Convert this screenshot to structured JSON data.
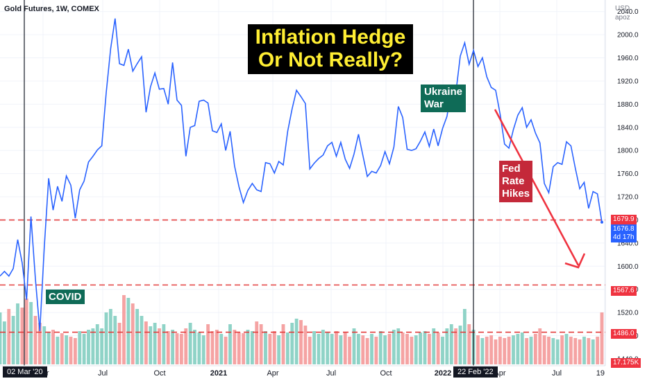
{
  "header": {
    "instrument": "Gold Futures, 1W, COMEX"
  },
  "axis_currency": {
    "currency": "USD",
    "unit": "apoz"
  },
  "title": {
    "line1": "Inflation Hedge",
    "line2": "Or Not Really?"
  },
  "annotations": {
    "covid": "COVID",
    "ukraine_line1": "Ukraine",
    "ukraine_line2": "War",
    "fed_line1": "Fed",
    "fed_line2": "Rate",
    "fed_line3": "Hikes"
  },
  "price_tags": {
    "level_1": "1679.9",
    "current": "1676.8",
    "countdown": "4d 17h",
    "level_2": "1567.6",
    "level_3": "1486.0",
    "volume": "17.175K"
  },
  "date_markers": {
    "covid": "02 Mar '20",
    "ukraine": "22 Feb '22"
  },
  "colors": {
    "line": "#2962ff",
    "volume_up": "#8fd3c7",
    "volume_down": "#f5a3a3",
    "dashed_level": "#e33c3c",
    "arrow": "#ef3340",
    "current_tag": "#2962ff",
    "level_tag": "#ef3340",
    "title_bg": "#000000",
    "title_text": "#ffee33",
    "green_box": "#0f6b57",
    "red_box": "#c4293a"
  },
  "chart_data": {
    "type": "line",
    "title": "Inflation Hedge Or Not Really?",
    "xlabel": "",
    "ylabel": "",
    "x_ticks": [
      "Apr",
      "Jul",
      "Oct",
      "2021",
      "Apr",
      "Jul",
      "Oct",
      "2022",
      "Apr",
      "Jul",
      "19"
    ],
    "y_ticks": [
      1440,
      1480,
      1520,
      1560,
      1600,
      1640,
      1680,
      1720,
      1760,
      1800,
      1840,
      1880,
      1920,
      1960,
      2000,
      2040
    ],
    "ylim": [
      1428,
      2060
    ],
    "grid": true,
    "series": [
      {
        "name": "Gold Futures",
        "values": [
          1583,
          1591,
          1583,
          1596,
          1646,
          1606,
          1542,
          1686,
          1578,
          1488,
          1633,
          1752,
          1697,
          1738,
          1712,
          1756,
          1740,
          1683,
          1732,
          1747,
          1780,
          1790,
          1801,
          1808,
          1900,
          1976,
          2028,
          1950,
          1947,
          1975,
          1937,
          1950,
          1962,
          1866,
          1910,
          1934,
          1906,
          1907,
          1880,
          1952,
          1887,
          1878,
          1790,
          1840,
          1843,
          1885,
          1887,
          1882,
          1834,
          1831,
          1846,
          1800,
          1833,
          1773,
          1737,
          1710,
          1731,
          1743,
          1732,
          1729,
          1779,
          1777,
          1761,
          1781,
          1775,
          1833,
          1872,
          1904,
          1893,
          1881,
          1768,
          1778,
          1786,
          1792,
          1808,
          1814,
          1790,
          1814,
          1785,
          1769,
          1794,
          1828,
          1791,
          1755,
          1764,
          1761,
          1774,
          1798,
          1777,
          1806,
          1876,
          1857,
          1802,
          1800,
          1803,
          1816,
          1832,
          1807,
          1837,
          1808,
          1838,
          1859,
          1907,
          1899,
          1963,
          1986,
          1949,
          1973,
          1945,
          1960,
          1927,
          1909,
          1904,
          1863,
          1811,
          1804,
          1836,
          1861,
          1874,
          1840,
          1853,
          1830,
          1813,
          1743,
          1727,
          1772,
          1779,
          1776,
          1815,
          1808,
          1769,
          1734,
          1745,
          1700,
          1729,
          1725,
          1676
        ]
      }
    ]
  }
}
